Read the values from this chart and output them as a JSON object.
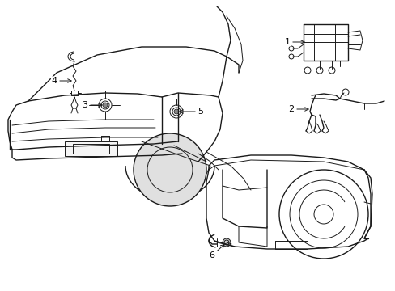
{
  "bg_color": "#ffffff",
  "line_color": "#1a1a1a",
  "label_color": "#000000",
  "label_font_size": 8,
  "figsize": [
    4.89,
    3.6
  ],
  "dpi": 100
}
